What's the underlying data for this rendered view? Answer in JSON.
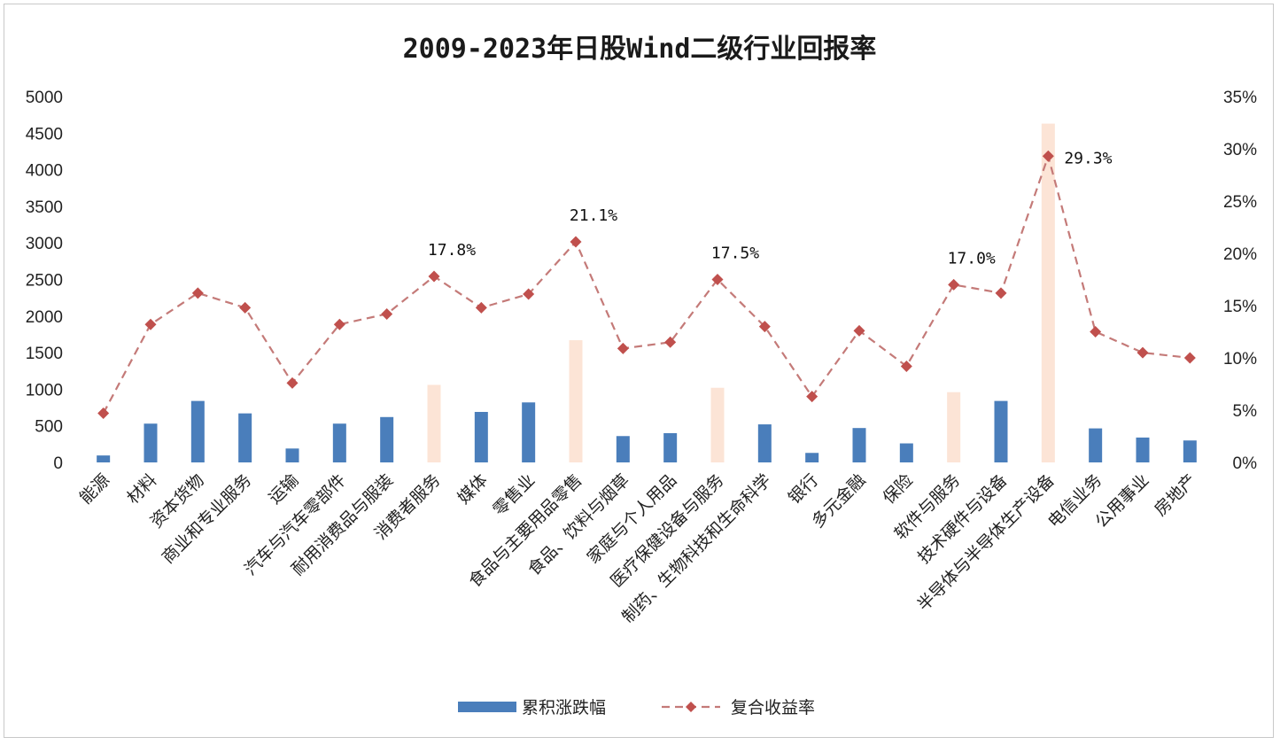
{
  "chart_data": {
    "type": "bar",
    "title": "2009-2023年日股Wind二级行业回报率",
    "categories": [
      "能源",
      "材料",
      "资本货物",
      "商业和专业服务",
      "运输",
      "汽车与汽车零部件",
      "耐用消费品与服装",
      "消费者服务",
      "媒体",
      "零售业",
      "食品与主要用品零售",
      "食品、饮料与烟草",
      "家庭与个人用品",
      "医疗保健设备与服务",
      "制药、生物科技和生命科学",
      "银行",
      "多元金融",
      "保险",
      "软件与服务",
      "技术硬件与设备",
      "半导体与半导体生产设备",
      "电信业务",
      "公用事业",
      "房地产"
    ],
    "series": [
      {
        "name": "累积涨跌幅",
        "type": "bar",
        "axis": "left",
        "color": "#4a7ebb",
        "highlight_color": "#fce4d6",
        "values": [
          95,
          530,
          840,
          670,
          190,
          530,
          620,
          1060,
          690,
          820,
          1670,
          360,
          400,
          1020,
          520,
          130,
          470,
          260,
          960,
          840,
          4630,
          465,
          340,
          300
        ],
        "highlighted": [
          false,
          false,
          false,
          false,
          false,
          false,
          false,
          true,
          false,
          false,
          true,
          false,
          false,
          true,
          false,
          false,
          false,
          false,
          true,
          false,
          true,
          false,
          false,
          false
        ]
      },
      {
        "name": "复合收益率",
        "type": "line",
        "axis": "right",
        "color": "#c0504d",
        "values": [
          4.7,
          13.2,
          16.2,
          14.8,
          7.6,
          13.2,
          14.2,
          17.8,
          14.8,
          16.1,
          21.1,
          10.9,
          11.5,
          17.5,
          13.0,
          6.3,
          12.6,
          9.2,
          17.0,
          16.2,
          29.3,
          12.5,
          10.5,
          10.0
        ]
      }
    ],
    "annotations": [
      {
        "category": "消费者服务",
        "text": "17.8%"
      },
      {
        "category": "食品与主要用品零售",
        "text": "21.1%"
      },
      {
        "category": "医疗保健设备与服务",
        "text": "17.5%"
      },
      {
        "category": "软件与服务",
        "text": "17.0%"
      },
      {
        "category": "半导体与半导体生产设备",
        "text": "29.3%"
      }
    ],
    "left_axis": {
      "ylim": [
        0,
        5000
      ],
      "ticks": [
        "0",
        "500",
        "1000",
        "1500",
        "2000",
        "2500",
        "3000",
        "3500",
        "4000",
        "4500",
        "5000"
      ]
    },
    "right_axis": {
      "ylim": [
        0,
        35
      ],
      "ticks": [
        "0%",
        "5%",
        "10%",
        "15%",
        "20%",
        "25%",
        "30%",
        "35%"
      ]
    },
    "grid": false,
    "legend_position": "bottom"
  }
}
